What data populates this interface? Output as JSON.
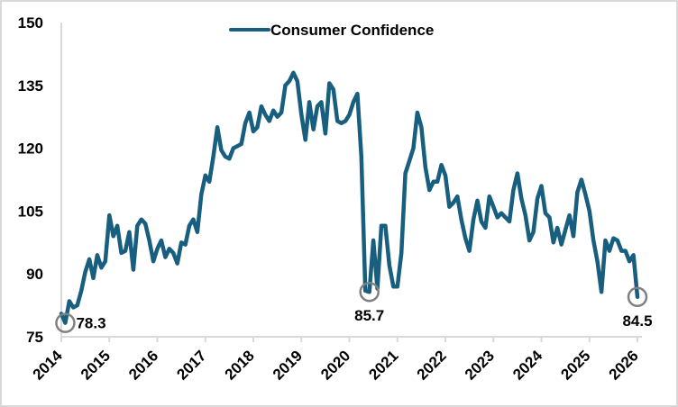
{
  "chart_data": {
    "type": "line",
    "title": "",
    "xlabel": "",
    "ylabel": "",
    "ylim": [
      75,
      150
    ],
    "yticks": [
      "75",
      "90",
      "105",
      "120",
      "135",
      "150"
    ],
    "xlim": [
      2014,
      2026
    ],
    "xticks": [
      "2014",
      "2015",
      "2016",
      "2017",
      "2018",
      "2019",
      "2020",
      "2021",
      "2022",
      "2023",
      "2024",
      "2025",
      "2026"
    ],
    "grid": false,
    "legend": {
      "position": "top-center",
      "entries": [
        "Consumer Confidence"
      ]
    },
    "series": [
      {
        "name": "Consumer Confidence",
        "color": "#175e7f",
        "frequency": "monthly",
        "start": "2014-01",
        "values": [
          80.5,
          78.3,
          83.5,
          82,
          82.5,
          86,
          90.5,
          93.5,
          89,
          94.5,
          91.5,
          93,
          104,
          99,
          101.5,
          95,
          95.5,
          100,
          91,
          101.5,
          103,
          102,
          98,
          93,
          96,
          98,
          94,
          96,
          95,
          92.5,
          97.5,
          97,
          101.5,
          103,
          100,
          109,
          113.5,
          112,
          118,
          125,
          119.5,
          118,
          117.5,
          120,
          120.5,
          121,
          126,
          128.5,
          124,
          125,
          130,
          128,
          126.5,
          129,
          127.5,
          128.5,
          135,
          136,
          138,
          136,
          128,
          122,
          131,
          124.5,
          130,
          131,
          123.5,
          135.5,
          134,
          126.5,
          126,
          126.5,
          128,
          131,
          133,
          118,
          86,
          85.7,
          98,
          86.5,
          101.5,
          101.5,
          92,
          87,
          87,
          95,
          114,
          117,
          120,
          128.5,
          125,
          115.5,
          110,
          112,
          112,
          116,
          113.5,
          106,
          107,
          108.5,
          103,
          98.5,
          95.5,
          103,
          107.5,
          102.5,
          101,
          108.5,
          106,
          103.5,
          104.5,
          103.5,
          102.5,
          110,
          114,
          108,
          104,
          98,
          100,
          108,
          111,
          104.5,
          103.5,
          97.5,
          101,
          97,
          100.5,
          104,
          99,
          109.5,
          112.5,
          109,
          105,
          98,
          93,
          85.7,
          98,
          95.5,
          98.5,
          98,
          95.5,
          95.5,
          93,
          94.5,
          84.5
        ]
      }
    ],
    "annotations": [
      {
        "label": "78.3",
        "date": "2014-02",
        "value": 78.3
      },
      {
        "label": "85.7",
        "date": "2020-06",
        "value": 85.7
      },
      {
        "label": "84.5",
        "date": "2026-01",
        "value": 84.5
      }
    ],
    "axis_color": "#d9d9d9",
    "marker_color": "#808080"
  }
}
